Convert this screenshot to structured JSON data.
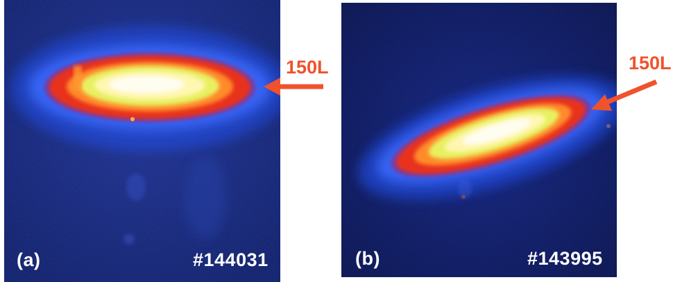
{
  "panels": [
    {
      "label": "(a)",
      "shot": "#144031",
      "callout": "150L"
    },
    {
      "label": "(b)",
      "shot": "#143995",
      "callout": "150L"
    }
  ],
  "colors": {
    "background": "#0b1a66",
    "halo": "#1f5cff",
    "ring_red": "#e8301c",
    "ring_orange": "#ff8a2a",
    "ring_yellow": "#e8f060",
    "core": "#fffbe0",
    "arrow": "#f0522c",
    "label": "#ffffff"
  }
}
